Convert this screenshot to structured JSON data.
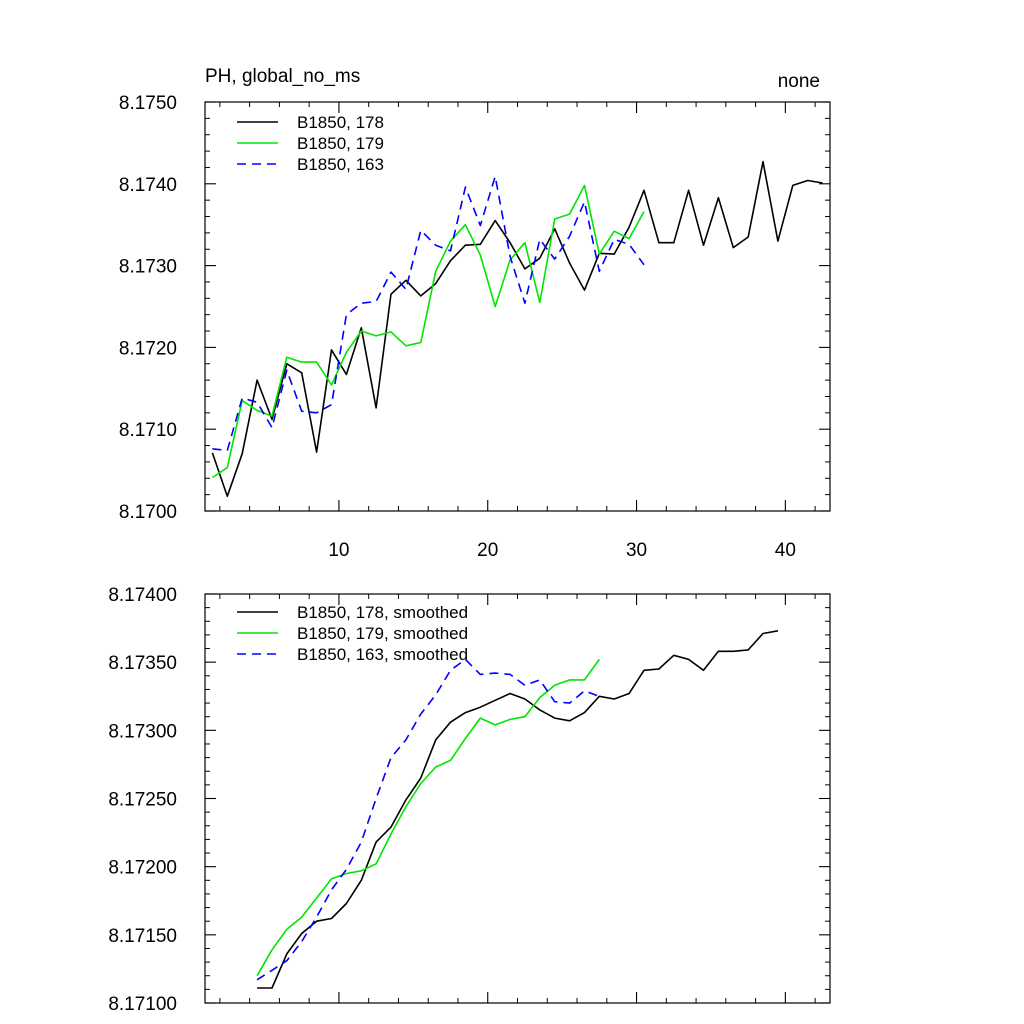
{
  "chart_data": [
    {
      "type": "line",
      "title_left": "PH, global_no_ms",
      "title_right": "none",
      "xlim": [
        1,
        43
      ],
      "ylim": [
        8.17,
        8.175
      ],
      "xticks": [
        10,
        20,
        30,
        40
      ],
      "xtick_labels": [
        "10",
        "20",
        "30",
        "40"
      ],
      "yticks": [
        8.17,
        8.171,
        8.172,
        8.173,
        8.174,
        8.175
      ],
      "ytick_labels": [
        "8.1700",
        "8.1710",
        "8.1720",
        "8.1730",
        "8.1740",
        "8.1750"
      ],
      "series": [
        {
          "name": "B1850, 178",
          "color": "#000000",
          "dash": "",
          "x": [
            1.5,
            2.5,
            3.5,
            4.5,
            5.5,
            6.5,
            7.5,
            8.5,
            9.5,
            10.5,
            11.5,
            12.5,
            13.5,
            14.5,
            15.5,
            16.5,
            17.5,
            18.5,
            19.5,
            20.5,
            21.5,
            22.5,
            23.5,
            24.5,
            25.5,
            26.5,
            27.5,
            28.5,
            29.5,
            30.5,
            31.5,
            32.5,
            33.5,
            34.5,
            35.5,
            36.5,
            37.5,
            38.5,
            39.5,
            40.5,
            41.5,
            42.5
          ],
          "values": [
            8.17071,
            8.17018,
            8.1707,
            8.1716,
            8.17112,
            8.1718,
            8.17169,
            8.17072,
            8.17197,
            8.17167,
            8.17224,
            8.17126,
            8.17265,
            8.17282,
            8.17263,
            8.17278,
            8.17306,
            8.17325,
            8.17326,
            8.17355,
            8.17328,
            8.17296,
            8.17309,
            8.17345,
            8.17303,
            8.1727,
            8.17315,
            8.17314,
            8.17347,
            8.17392,
            8.17328,
            8.17328,
            8.17392,
            8.17325,
            8.17383,
            8.17322,
            8.17335,
            8.17427,
            8.1733,
            8.17398,
            8.17404,
            8.17401
          ]
        },
        {
          "name": "B1850, 179",
          "color": "#00e600",
          "dash": "",
          "x": [
            1.5,
            2.5,
            3.5,
            4.5,
            5.5,
            6.5,
            7.5,
            8.5,
            9.5,
            10.5,
            11.5,
            12.5,
            13.5,
            14.5,
            15.5,
            16.5,
            17.5,
            18.5,
            19.5,
            20.5,
            21.5,
            22.5,
            23.5,
            24.5,
            25.5,
            26.5,
            27.5,
            28.5,
            29.5,
            30.5
          ],
          "values": [
            8.17041,
            8.17053,
            8.17135,
            8.17123,
            8.17116,
            8.17188,
            8.17182,
            8.17182,
            8.17154,
            8.17194,
            8.1722,
            8.17214,
            8.17219,
            8.17202,
            8.17206,
            8.17293,
            8.1733,
            8.1735,
            8.17313,
            8.1725,
            8.17307,
            8.17328,
            8.17255,
            8.17357,
            8.17363,
            8.17398,
            8.17314,
            8.17342,
            8.17333,
            8.17366
          ]
        },
        {
          "name": "B1850, 163",
          "color": "#0000ff",
          "dash": "9,6",
          "x": [
            1.5,
            2.5,
            3.5,
            4.5,
            5.5,
            6.5,
            7.5,
            8.5,
            9.5,
            10.5,
            11.5,
            12.5,
            13.5,
            14.5,
            15.5,
            16.5,
            17.5,
            18.5,
            19.5,
            20.5,
            21.5,
            22.5,
            23.5,
            24.5,
            25.5,
            26.5,
            27.5,
            28.5,
            29.5,
            30.5
          ],
          "values": [
            8.17076,
            8.17074,
            8.17138,
            8.17133,
            8.17102,
            8.17172,
            8.17122,
            8.1712,
            8.1713,
            8.1724,
            8.17254,
            8.17256,
            8.17292,
            8.17271,
            8.17343,
            8.17325,
            8.17318,
            8.17396,
            8.17349,
            8.17409,
            8.17311,
            8.17254,
            8.17332,
            8.17308,
            8.17336,
            8.17378,
            8.17293,
            8.17332,
            8.17326,
            8.17301
          ]
        }
      ]
    },
    {
      "type": "line",
      "xlim": [
        1,
        43
      ],
      "ylim": [
        8.171,
        8.174
      ],
      "xticks": [
        10,
        20,
        30,
        40
      ],
      "yticks": [
        8.171,
        8.1715,
        8.172,
        8.1725,
        8.173,
        8.1735,
        8.174
      ],
      "ytick_labels": [
        "8.17100",
        "8.17150",
        "8.17200",
        "8.17250",
        "8.17300",
        "8.17350",
        "8.17400"
      ],
      "series": [
        {
          "name": "B1850, 178, smoothed",
          "color": "#000000",
          "dash": "",
          "x": [
            4.5,
            5.5,
            6.5,
            7.5,
            8.5,
            9.5,
            10.5,
            11.5,
            12.5,
            13.5,
            14.5,
            15.5,
            16.5,
            17.5,
            18.5,
            19.5,
            20.5,
            21.5,
            22.5,
            23.5,
            24.5,
            25.5,
            26.5,
            27.5,
            28.5,
            29.5,
            30.5,
            31.5,
            32.5,
            33.5,
            34.5,
            35.5,
            36.5,
            37.5,
            38.5,
            39.5
          ],
          "values": [
            8.17111,
            8.17111,
            8.17136,
            8.17151,
            8.1716,
            8.17162,
            8.17173,
            8.1719,
            8.17218,
            8.17229,
            8.17249,
            8.17265,
            8.17293,
            8.17306,
            8.17313,
            8.17317,
            8.17322,
            8.17327,
            8.17323,
            8.17315,
            8.17309,
            8.17307,
            8.17313,
            8.17325,
            8.17323,
            8.17327,
            8.17344,
            8.17345,
            8.17355,
            8.17352,
            8.17344,
            8.17358,
            8.17358,
            8.17359,
            8.17371,
            8.17373
          ]
        },
        {
          "name": "B1850, 179, smoothed",
          "color": "#00e600",
          "dash": "",
          "x": [
            4.5,
            5.5,
            6.5,
            7.5,
            8.5,
            9.5,
            10.5,
            11.5,
            12.5,
            13.5,
            14.5,
            15.5,
            16.5,
            17.5,
            18.5,
            19.5,
            20.5,
            21.5,
            22.5,
            23.5,
            24.5,
            25.5,
            26.5,
            27.5
          ],
          "values": [
            8.1712,
            8.17139,
            8.17154,
            8.17163,
            8.17177,
            8.17191,
            8.17195,
            8.17197,
            8.17202,
            8.17224,
            8.17244,
            8.17261,
            8.17273,
            8.17278,
            8.17294,
            8.17309,
            8.17304,
            8.17308,
            8.1731,
            8.17324,
            8.17333,
            8.17337,
            8.17337,
            8.17352
          ]
        },
        {
          "name": "B1850, 163, smoothed",
          "color": "#0000ff",
          "dash": "9,6",
          "x": [
            4.5,
            5.5,
            6.5,
            7.5,
            8.5,
            9.5,
            10.5,
            11.5,
            12.5,
            13.5,
            14.5,
            15.5,
            16.5,
            17.5,
            18.5,
            19.5,
            20.5,
            21.5,
            22.5,
            23.5,
            24.5,
            25.5,
            26.5,
            27.5
          ],
          "values": [
            8.17117,
            8.17124,
            8.17131,
            8.17145,
            8.17163,
            8.17183,
            8.17198,
            8.17218,
            8.1725,
            8.1728,
            8.17293,
            8.17312,
            8.17326,
            8.17344,
            8.17352,
            8.17341,
            8.17342,
            8.17341,
            8.17333,
            8.17337,
            8.17321,
            8.1732,
            8.17329,
            8.17325
          ]
        }
      ]
    }
  ]
}
